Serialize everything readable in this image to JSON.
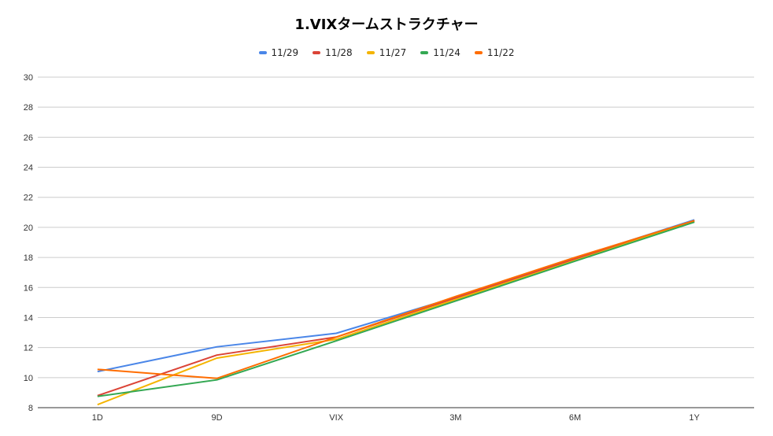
{
  "chart_data": {
    "type": "line",
    "title": "1.VIXタームストラクチャー",
    "categories": [
      "1D",
      "9D",
      "VIX",
      "3M",
      "6M",
      "1Y"
    ],
    "ylim": [
      8,
      30
    ],
    "yticks": [
      8,
      10,
      12,
      14,
      16,
      18,
      20,
      22,
      24,
      26,
      28,
      30
    ],
    "grid": true,
    "legend": "top-center",
    "series": [
      {
        "name": "11/29",
        "color": "#4a86e8",
        "values": [
          10.4,
          12.05,
          12.95,
          15.35,
          17.95,
          20.5
        ]
      },
      {
        "name": "11/28",
        "color": "#db4437",
        "values": [
          8.8,
          11.5,
          12.7,
          15.3,
          17.9,
          20.45
        ]
      },
      {
        "name": "11/27",
        "color": "#f4b400",
        "values": [
          8.2,
          11.3,
          12.55,
          15.2,
          17.8,
          20.4
        ]
      },
      {
        "name": "11/24",
        "color": "#34a853",
        "values": [
          8.75,
          9.85,
          12.45,
          15.1,
          17.75,
          20.35
        ]
      },
      {
        "name": "11/22",
        "color": "#ff6d01",
        "values": [
          10.55,
          9.95,
          12.7,
          15.4,
          18.0,
          20.45
        ]
      }
    ]
  }
}
